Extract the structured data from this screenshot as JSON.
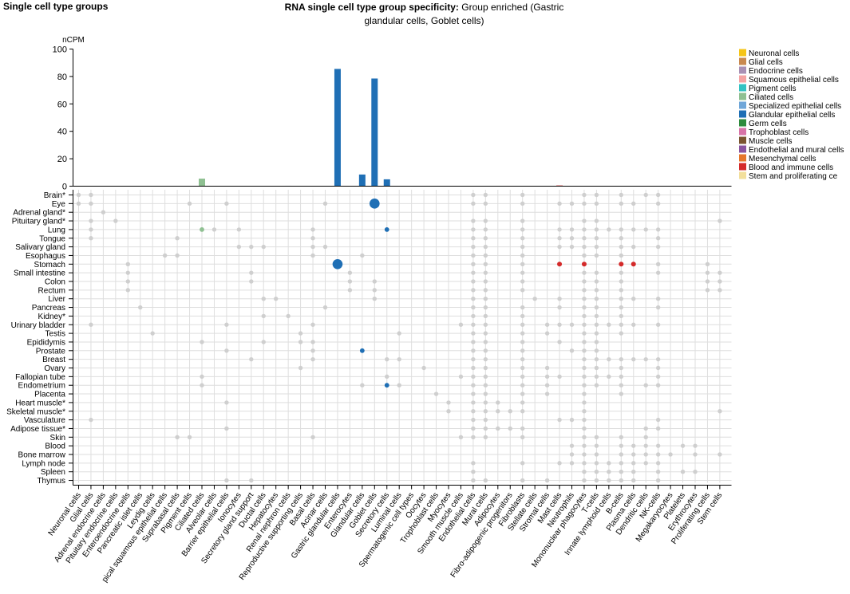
{
  "panel_title": "Single cell type groups",
  "chart_title": {
    "bold": "RNA single cell type group specificity:",
    "rest": "Group enriched (Gastric glandular cells, Goblet cells)"
  },
  "chart_data": {
    "type": "bar",
    "ylabel": "nCPM",
    "ylim": [
      0,
      100
    ],
    "yticks": [
      0,
      20,
      40,
      60,
      80,
      100
    ],
    "grid": true,
    "legend_position": "right",
    "categories": [
      "Neuronal cells",
      "Glial cells",
      "Adrenal endocrine cells",
      "Pituitary endocrine cells",
      "Enteroendocrine cells",
      "Pancreatic islet cells",
      "Leydig cells",
      "Basal squamous epithelial cells",
      "Suprabasal cells",
      "Pigment cells",
      "Ciliated cells",
      "Alveolar cells",
      "Barrier epithelial cells",
      "Ionocytes",
      "Secretory gland support",
      "Ductal cells",
      "Hepatocytes",
      "Renal nephron cells",
      "Reproductive supporting cells",
      "Basal cells",
      "Acinar cells",
      "Gastric glandular cells",
      "Enterocytes",
      "Glandular cells",
      "Goblet cells",
      "Secretory cells",
      "Luminal cells",
      "Spermatogenic cell types",
      "Oocytes",
      "Trophoblast cells",
      "Myocytes",
      "Smooth muscle cells",
      "Endothelial cells",
      "Mural cells",
      "Adipocytes",
      "Fibro-adipogenic progenitors",
      "Fibroblasts",
      "Stellate cells",
      "Stromal cells",
      "Mast cells",
      "Neutrophils",
      "Mononuclear phagocytes",
      "T-cells",
      "Innate lymphoid cells",
      "B-cells",
      "Plasma cells",
      "Dendritic cells",
      "NK-cells",
      "Megakaryocytes",
      "Platelets",
      "Erythrocytes",
      "Proliferating cells",
      "Stem cells"
    ],
    "categories_visible": [
      "Neuronal cells",
      "Glial cells",
      "Adrenal endocrine cells",
      "Pituitary endocrine cells",
      "Enteroendocrine cells",
      "Pancreatic islet cells",
      "Leydig cells",
      "pical squamous epithelial cells",
      "Suprabasal cells",
      "Pigment cells",
      "Ciliated cells",
      "Alveolar cells",
      "Barrier epithelial cells",
      "Ionocytes",
      "Secretory gland support",
      "Ductal cells",
      "Hepatocytes",
      "Renal nephron cells",
      "Reproductive supporting cells",
      "Basal cells",
      "Acinar cells",
      "Gastric glandular cells",
      "Enterocytes",
      "Glandular cells",
      "Goblet cells",
      "Secretory cells",
      "Luminal cells",
      "Spermatogenic cell types",
      "Oocytes",
      "Trophoblast cells",
      "Myocytes",
      "Smooth muscle cells",
      "Endothelial cells",
      "Mural cells",
      "Adipocytes",
      "Fibro-adipogenic progenitors",
      "Fibroblasts",
      "Stellate cells",
      "Stromal cells",
      "Mast cells",
      "Neutrophils",
      "Mononuclear phagocytes",
      "T-cells",
      "Innate lymphoid cells",
      "B-cells",
      "Plasma cells",
      "Dendritic cells",
      "NK-cells",
      "Megakaryocytes",
      "Platelets",
      "Erythrocytes",
      "Proliferating cells",
      "Stem cells"
    ],
    "category_groups": [
      "Neuronal cells",
      "Glial cells",
      "Endocrine cells",
      "Endocrine cells",
      "Endocrine cells",
      "Endocrine cells",
      "Endocrine cells",
      "Squamous epithelial cells",
      "Squamous epithelial cells",
      "Pigment cells",
      "Ciliated cells",
      "Specialized epithelial cells",
      "Specialized epithelial cells",
      "Specialized epithelial cells",
      "Specialized epithelial cells",
      "Glandular epithelial cells",
      "Glandular epithelial cells",
      "Glandular epithelial cells",
      "Glandular epithelial cells",
      "Glandular epithelial cells",
      "Glandular epithelial cells",
      "Glandular epithelial cells",
      "Glandular epithelial cells",
      "Glandular epithelial cells",
      "Glandular epithelial cells",
      "Glandular epithelial cells",
      "Glandular epithelial cells",
      "Germ cells",
      "Germ cells",
      "Trophoblast cells",
      "Muscle cells",
      "Muscle cells",
      "Endothelial and mural cells",
      "Endothelial and mural cells",
      "Mesenchymal cells",
      "Mesenchymal cells",
      "Mesenchymal cells",
      "Mesenchymal cells",
      "Mesenchymal cells",
      "Blood and immune cells",
      "Blood and immune cells",
      "Blood and immune cells",
      "Blood and immune cells",
      "Blood and immune cells",
      "Blood and immune cells",
      "Blood and immune cells",
      "Blood and immune cells",
      "Blood and immune cells",
      "Blood and immune cells",
      "Blood and immune cells",
      "Blood and immune cells",
      "Stem and proliferating cells",
      "Stem and proliferating cells"
    ],
    "values": [
      0,
      0,
      0,
      0,
      0,
      0,
      0,
      0,
      0,
      0,
      5.5,
      0,
      0,
      0,
      0,
      0,
      0,
      0.3,
      0,
      0,
      0,
      85.5,
      0,
      8.5,
      78.5,
      5,
      0,
      0,
      0,
      0,
      0,
      0,
      0,
      0,
      0,
      0,
      0,
      0,
      0,
      0.5,
      0,
      0,
      0,
      0,
      0,
      0,
      0,
      0,
      0,
      0,
      0,
      0,
      0
    ],
    "legend": [
      {
        "name": "Neuronal cells",
        "color": "#f5c518"
      },
      {
        "name": "Glial cells",
        "color": "#c8894f"
      },
      {
        "name": "Endocrine cells",
        "color": "#a990b5"
      },
      {
        "name": "Squamous epithelial cells",
        "color": "#f4a3a3"
      },
      {
        "name": "Pigment cells",
        "color": "#33c2c2"
      },
      {
        "name": "Ciliated cells",
        "color": "#8fc092"
      },
      {
        "name": "Specialized epithelial cells",
        "color": "#6fa6d8"
      },
      {
        "name": "Glandular epithelial cells",
        "color": "#1f6fb5"
      },
      {
        "name": "Germ cells",
        "color": "#2e8b3d"
      },
      {
        "name": "Trophoblast cells",
        "color": "#d874a8"
      },
      {
        "name": "Muscle cells",
        "color": "#7a5530"
      },
      {
        "name": "Endothelial and mural cells",
        "color": "#8a55a0"
      },
      {
        "name": "Mesenchymal cells",
        "color": "#e5772c"
      },
      {
        "name": "Blood and immune cells",
        "color": "#d42a2a"
      },
      {
        "name": "Stem and proliferating cells",
        "color": "#f2df9c"
      }
    ],
    "legend_visible": [
      "Neuronal cells",
      "Glial cells",
      "Endocrine cells",
      "Squamous epithelial cells",
      "Pigment cells",
      "Ciliated cells",
      "Specialized epithelial cells",
      "Glandular epithelial cells",
      "Germ cells",
      "Trophoblast cells",
      "Muscle cells",
      "Endothelial and mural cells",
      "Mesenchymal cells",
      "Blood and immune cells",
      "Stem and proliferating ce"
    ],
    "tissues": [
      "Brain*",
      "Eye",
      "Adrenal gland*",
      "Pituitary gland*",
      "Lung",
      "Tongue",
      "Salivary gland",
      "Esophagus",
      "Stomach",
      "Small intestine",
      "Colon",
      "Rectum",
      "Liver",
      "Pancreas",
      "Kidney*",
      "Urinary bladder",
      "Testis",
      "Epididymis",
      "Prostate",
      "Breast",
      "Ovary",
      "Fallopian tube",
      "Endometrium",
      "Placenta",
      "Heart muscle*",
      "Skeletal muscle*",
      "Vasculature",
      "Adipose tissue*",
      "Skin",
      "Blood",
      "Bone marrow",
      "Lymph node",
      "Spleen",
      "Thymus"
    ],
    "presence": [
      [
        0,
        1,
        32,
        33,
        36,
        41,
        42,
        44,
        46,
        47
      ],
      [
        0,
        1,
        9,
        12,
        20,
        24,
        32,
        33,
        36,
        39,
        40,
        41,
        42,
        44,
        45,
        47
      ],
      [
        2
      ],
      [
        1,
        3,
        32,
        33,
        36,
        41,
        42,
        52
      ],
      [
        1,
        10,
        11,
        13,
        19,
        25,
        32,
        33,
        36,
        39,
        40,
        41,
        42,
        43,
        44,
        45,
        46,
        47
      ],
      [
        1,
        8,
        19,
        32,
        33,
        36,
        39,
        40,
        41,
        42,
        44,
        47
      ],
      [
        13,
        14,
        15,
        19,
        20,
        32,
        33,
        36,
        39,
        40,
        41,
        42,
        44,
        45,
        47
      ],
      [
        7,
        8,
        19,
        23,
        32,
        33,
        36,
        41,
        42,
        44
      ],
      [
        4,
        21,
        32,
        33,
        36,
        39,
        41,
        44,
        45,
        47,
        51
      ],
      [
        4,
        14,
        22,
        32,
        33,
        36,
        41,
        42,
        44,
        47,
        51,
        52
      ],
      [
        4,
        14,
        22,
        24,
        32,
        33,
        36,
        41,
        42,
        44,
        51,
        52
      ],
      [
        4,
        22,
        24,
        32,
        33,
        36,
        41,
        42,
        44,
        51,
        52
      ],
      [
        15,
        16,
        24,
        32,
        33,
        37,
        39,
        41,
        42,
        44,
        45,
        47
      ],
      [
        5,
        20,
        32,
        33,
        36,
        39,
        41,
        42,
        44,
        47
      ],
      [
        15,
        17,
        32,
        33,
        36,
        41,
        42,
        44
      ],
      [
        1,
        12,
        19,
        31,
        32,
        33,
        36,
        38,
        39,
        40,
        41,
        42,
        43,
        44,
        45,
        47
      ],
      [
        6,
        18,
        26,
        32,
        33,
        36,
        38,
        41,
        42,
        44
      ],
      [
        10,
        15,
        18,
        19,
        32,
        33,
        36,
        39,
        41,
        42
      ],
      [
        12,
        19,
        23,
        32,
        33,
        36,
        40,
        41,
        42
      ],
      [
        14,
        19,
        25,
        26,
        32,
        33,
        36,
        41,
        42,
        43,
        44,
        45,
        46,
        47
      ],
      [
        18,
        28,
        32,
        33,
        36,
        38,
        41,
        42,
        44,
        47
      ],
      [
        10,
        25,
        31,
        32,
        33,
        36,
        38,
        39,
        41,
        42,
        43,
        44,
        47
      ],
      [
        10,
        23,
        25,
        26,
        32,
        33,
        36,
        38,
        41,
        42,
        44,
        46,
        47
      ],
      [
        29,
        32,
        33,
        36,
        38,
        41,
        44
      ],
      [
        12,
        30,
        32,
        33,
        34,
        36,
        41
      ],
      [
        30,
        32,
        33,
        34,
        35,
        36,
        41,
        52
      ],
      [
        1,
        32,
        33,
        39,
        40,
        41,
        47
      ],
      [
        12,
        32,
        33,
        34,
        35,
        36,
        41,
        46,
        47
      ],
      [
        8,
        9,
        19,
        31,
        32,
        33,
        36,
        41,
        42,
        44,
        46
      ],
      [
        40,
        41,
        42,
        44,
        45,
        46,
        47,
        49,
        50
      ],
      [
        40,
        41,
        42,
        44,
        45,
        46,
        47,
        48,
        50,
        52
      ],
      [
        32,
        36,
        39,
        40,
        41,
        42,
        43,
        44,
        45,
        46,
        47
      ],
      [
        32,
        41,
        42,
        43,
        44,
        45,
        47,
        49,
        50
      ],
      [
        12,
        14,
        32,
        33,
        36,
        38,
        41,
        42,
        43,
        44,
        45,
        47
      ]
    ],
    "highlights": [
      {
        "tissue": "Eye",
        "category": "Goblet cells",
        "value": 78.5
      },
      {
        "tissue": "Lung",
        "category": "Ciliated cells",
        "value": 5.5
      },
      {
        "tissue": "Lung",
        "category": "Secretory cells",
        "value": 5
      },
      {
        "tissue": "Stomach",
        "category": "Gastric glandular cells",
        "value": 85.5
      },
      {
        "tissue": "Stomach",
        "category": "Mast cells",
        "value": 0.5
      },
      {
        "tissue": "Stomach",
        "category": "Mononuclear phagocytes",
        "value": 0.5
      },
      {
        "tissue": "Stomach",
        "category": "B-cells",
        "value": 0.5
      },
      {
        "tissue": "Stomach",
        "category": "Plasma cells",
        "value": 0.5
      },
      {
        "tissue": "Prostate",
        "category": "Glandular cells",
        "value": 8.5
      },
      {
        "tissue": "Endometrium",
        "category": "Secretory cells",
        "value": 5
      }
    ]
  }
}
